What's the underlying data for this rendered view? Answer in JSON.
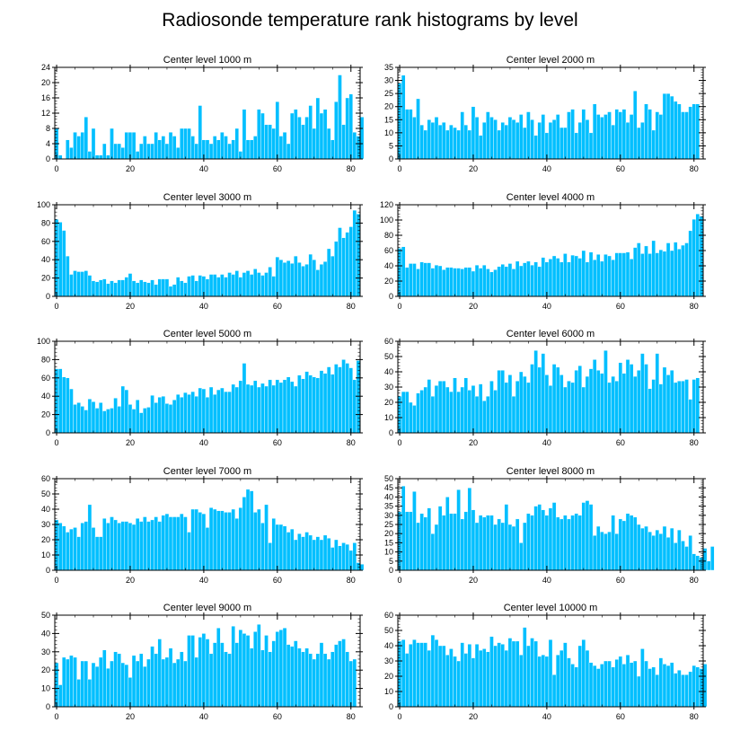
{
  "figure_title": "Radiosonde temperature rank histograms by level",
  "colors": {
    "bar": "#00BFFF",
    "frame": "#000000"
  },
  "chart_data": [
    {
      "type": "bar",
      "title": "Center level 1000 m",
      "xlim": [
        -0.5,
        82.5
      ],
      "ylim": [
        0,
        24
      ],
      "xticks": [
        0,
        20,
        40,
        60,
        80
      ],
      "yticks": [
        0,
        4,
        8,
        12,
        16,
        20,
        24
      ],
      "values": [
        8,
        1,
        0,
        5,
        3,
        7,
        6,
        7,
        11,
        2,
        8,
        1,
        1,
        4,
        1,
        8,
        4,
        4,
        3,
        7,
        7,
        7,
        2,
        4,
        6,
        4,
        4,
        7,
        5,
        6,
        4,
        7,
        6,
        3,
        8,
        8,
        8,
        6,
        4,
        14,
        5,
        5,
        4,
        6,
        5,
        7,
        6,
        4,
        5,
        8,
        2,
        13,
        5,
        5,
        6,
        13,
        12,
        9,
        9,
        8,
        15,
        6,
        7,
        4,
        12,
        13,
        11,
        9,
        11,
        14,
        8,
        16,
        12,
        13,
        8,
        5,
        15,
        22,
        9,
        16,
        17,
        7,
        6,
        11
      ]
    },
    {
      "type": "bar",
      "title": "Center level 2000 m",
      "xlim": [
        -0.5,
        82.5
      ],
      "ylim": [
        0,
        35
      ],
      "xticks": [
        0,
        20,
        40,
        60,
        80
      ],
      "yticks": [
        0,
        5,
        10,
        15,
        20,
        25,
        30,
        35
      ],
      "values": [
        29,
        32,
        19,
        19,
        16,
        23,
        13,
        11,
        15,
        14,
        16,
        13,
        14,
        11,
        13,
        12,
        11,
        18,
        13,
        11,
        20,
        16,
        9,
        14,
        18,
        16,
        15,
        11,
        14,
        13,
        16,
        15,
        14,
        17,
        12,
        18,
        15,
        9,
        14,
        17,
        10,
        14,
        15,
        17,
        12,
        12,
        18,
        19,
        10,
        14,
        19,
        15,
        10,
        21,
        17,
        16,
        17,
        18,
        13,
        19,
        18,
        19,
        14,
        17,
        26,
        12,
        14,
        21,
        19,
        11,
        18,
        17,
        25,
        25,
        24,
        22,
        21,
        18,
        18,
        20,
        21,
        21
      ]
    },
    {
      "type": "bar",
      "title": "Center level 3000 m",
      "xlim": [
        -0.5,
        82.5
      ],
      "ylim": [
        0,
        100
      ],
      "xticks": [
        0,
        20,
        40,
        60,
        80
      ],
      "yticks": [
        0,
        20,
        40,
        60,
        80,
        100
      ],
      "values": [
        84,
        81,
        72,
        44,
        24,
        28,
        27,
        27,
        28,
        23,
        17,
        16,
        18,
        19,
        14,
        17,
        15,
        18,
        18,
        21,
        25,
        17,
        15,
        18,
        16,
        15,
        18,
        13,
        19,
        19,
        19,
        11,
        13,
        21,
        17,
        15,
        22,
        23,
        17,
        23,
        22,
        19,
        24,
        24,
        21,
        24,
        21,
        26,
        24,
        28,
        21,
        26,
        28,
        24,
        30,
        26,
        23,
        26,
        32,
        22,
        43,
        40,
        37,
        39,
        36,
        44,
        37,
        33,
        35,
        46,
        40,
        29,
        35,
        38,
        52,
        44,
        60,
        75,
        64,
        70,
        76,
        94,
        90
      ]
    },
    {
      "type": "bar",
      "title": "Center level 4000 m",
      "xlim": [
        -0.5,
        82.5
      ],
      "ylim": [
        0,
        120
      ],
      "xticks": [
        0,
        20,
        40,
        60,
        80
      ],
      "yticks": [
        0,
        20,
        40,
        60,
        80,
        100,
        120
      ],
      "values": [
        63,
        65,
        38,
        43,
        43,
        36,
        45,
        44,
        44,
        37,
        41,
        40,
        35,
        38,
        38,
        37,
        37,
        36,
        38,
        38,
        33,
        41,
        37,
        41,
        36,
        32,
        35,
        39,
        42,
        39,
        43,
        36,
        46,
        40,
        44,
        46,
        41,
        45,
        39,
        51,
        45,
        49,
        53,
        50,
        45,
        56,
        45,
        54,
        53,
        50,
        60,
        45,
        58,
        48,
        55,
        46,
        55,
        53,
        48,
        57,
        57,
        57,
        58,
        49,
        64,
        70,
        56,
        66,
        56,
        73,
        57,
        61,
        59,
        70,
        60,
        71,
        62,
        67,
        70,
        86,
        101,
        108,
        105
      ]
    },
    {
      "type": "bar",
      "title": "Center level 5000 m",
      "xlim": [
        -0.5,
        82.5
      ],
      "ylim": [
        0,
        100
      ],
      "xticks": [
        0,
        20,
        40,
        60,
        80
      ],
      "yticks": [
        0,
        20,
        40,
        60,
        80,
        100
      ],
      "values": [
        70,
        70,
        61,
        60,
        48,
        31,
        33,
        29,
        25,
        37,
        34,
        27,
        33,
        24,
        26,
        27,
        38,
        29,
        51,
        47,
        31,
        26,
        36,
        22,
        27,
        28,
        41,
        33,
        39,
        40,
        32,
        31,
        36,
        42,
        39,
        44,
        42,
        45,
        40,
        49,
        48,
        39,
        50,
        42,
        47,
        49,
        45,
        45,
        53,
        50,
        57,
        76,
        53,
        52,
        57,
        50,
        54,
        51,
        58,
        52,
        58,
        55,
        58,
        61,
        56,
        51,
        63,
        59,
        67,
        63,
        61,
        60,
        68,
        65,
        72,
        64,
        75,
        72,
        80,
        76,
        71,
        58,
        79
      ]
    },
    {
      "type": "bar",
      "title": "Center level 6000 m",
      "xlim": [
        -0.5,
        82.5
      ],
      "ylim": [
        0,
        60
      ],
      "xticks": [
        0,
        20,
        40,
        60,
        80
      ],
      "yticks": [
        0,
        10,
        20,
        30,
        40,
        50,
        60
      ],
      "values": [
        24,
        27,
        27,
        20,
        18,
        26,
        28,
        30,
        35,
        24,
        31,
        34,
        34,
        30,
        27,
        36,
        27,
        30,
        36,
        28,
        31,
        24,
        32,
        21,
        24,
        34,
        28,
        41,
        41,
        33,
        38,
        24,
        34,
        40,
        37,
        33,
        45,
        54,
        43,
        52,
        38,
        31,
        45,
        43,
        38,
        30,
        34,
        33,
        41,
        44,
        30,
        37,
        42,
        48,
        41,
        39,
        54,
        33,
        37,
        34,
        46,
        39,
        48,
        45,
        37,
        41,
        52,
        45,
        29,
        35,
        52,
        32,
        43,
        38,
        41,
        33,
        34,
        34,
        35,
        22,
        35,
        36
      ]
    },
    {
      "type": "bar",
      "title": "Center level 7000 m",
      "xlim": [
        -0.5,
        82.5
      ],
      "ylim": [
        0,
        60
      ],
      "xticks": [
        0,
        20,
        40,
        60,
        80
      ],
      "yticks": [
        0,
        10,
        20,
        30,
        40,
        50,
        60
      ],
      "values": [
        33,
        31,
        29,
        25,
        27,
        28,
        22,
        31,
        32,
        43,
        28,
        22,
        22,
        34,
        31,
        35,
        33,
        31,
        32,
        32,
        31,
        30,
        34,
        32,
        35,
        32,
        33,
        35,
        32,
        36,
        37,
        35,
        35,
        35,
        37,
        35,
        25,
        40,
        40,
        38,
        37,
        28,
        41,
        40,
        39,
        39,
        38,
        38,
        40,
        34,
        41,
        48,
        53,
        52,
        38,
        40,
        31,
        43,
        18,
        34,
        30,
        30,
        29,
        25,
        27,
        20,
        24,
        22,
        25,
        23,
        20,
        22,
        20,
        23,
        21,
        15,
        20,
        16,
        18,
        17,
        13,
        18,
        5,
        4
      ]
    },
    {
      "type": "bar",
      "title": "Center level 8000 m",
      "xlim": [
        -0.5,
        82.5
      ],
      "ylim": [
        0,
        50
      ],
      "xticks": [
        0,
        20,
        40,
        60,
        80
      ],
      "yticks": [
        0,
        5,
        10,
        15,
        20,
        25,
        30,
        35,
        40,
        45,
        50
      ],
      "values": [
        32,
        46,
        32,
        32,
        43,
        26,
        31,
        29,
        34,
        20,
        25,
        35,
        30,
        40,
        31,
        31,
        44,
        28,
        32,
        45,
        33,
        26,
        30,
        29,
        30,
        30,
        25,
        28,
        26,
        36,
        25,
        24,
        28,
        15,
        26,
        31,
        30,
        35,
        36,
        33,
        30,
        34,
        37,
        29,
        28,
        30,
        28,
        30,
        31,
        30,
        37,
        38,
        36,
        19,
        24,
        21,
        20,
        21,
        30,
        20,
        28,
        27,
        31,
        30,
        29,
        25,
        23,
        24,
        21,
        19,
        22,
        20,
        24,
        18,
        23,
        15,
        22,
        16,
        13,
        19,
        9,
        8,
        7,
        12,
        5,
        13
      ]
    },
    {
      "type": "bar",
      "title": "Center level 9000 m",
      "xlim": [
        -0.5,
        82.5
      ],
      "ylim": [
        0,
        50
      ],
      "xticks": [
        0,
        20,
        40,
        60,
        80
      ],
      "yticks": [
        0,
        10,
        20,
        30,
        40,
        50
      ],
      "values": [
        24,
        12,
        27,
        26,
        28,
        27,
        15,
        25,
        25,
        15,
        24,
        22,
        27,
        31,
        21,
        25,
        30,
        29,
        24,
        23,
        16,
        28,
        25,
        29,
        22,
        26,
        33,
        29,
        37,
        26,
        27,
        32,
        24,
        26,
        30,
        25,
        39,
        39,
        27,
        38,
        40,
        37,
        29,
        35,
        43,
        35,
        30,
        29,
        44,
        35,
        42,
        40,
        39,
        32,
        41,
        45,
        31,
        39,
        30,
        36,
        41,
        42,
        43,
        34,
        33,
        36,
        32,
        30,
        32,
        29,
        26,
        29,
        35,
        29,
        26,
        30,
        34,
        36,
        37,
        30,
        25,
        26
      ]
    },
    {
      "type": "bar",
      "title": "Center level 10000 m",
      "xlim": [
        -0.5,
        82.5
      ],
      "ylim": [
        0,
        60
      ],
      "xticks": [
        0,
        20,
        40,
        60,
        80
      ],
      "yticks": [
        0,
        10,
        20,
        30,
        40,
        50,
        60
      ],
      "values": [
        43,
        44,
        35,
        41,
        44,
        42,
        42,
        42,
        37,
        47,
        44,
        40,
        40,
        34,
        38,
        33,
        30,
        42,
        35,
        41,
        32,
        41,
        37,
        38,
        36,
        46,
        40,
        42,
        41,
        37,
        45,
        43,
        43,
        34,
        52,
        40,
        45,
        43,
        33,
        34,
        33,
        44,
        21,
        34,
        37,
        42,
        32,
        28,
        26,
        40,
        44,
        37,
        29,
        27,
        25,
        28,
        30,
        30,
        26,
        31,
        33,
        28,
        34,
        29,
        30,
        20,
        38,
        30,
        25,
        26,
        21,
        32,
        28,
        27,
        29,
        22,
        24,
        21,
        21,
        23,
        27,
        26,
        25,
        28
      ]
    }
  ]
}
